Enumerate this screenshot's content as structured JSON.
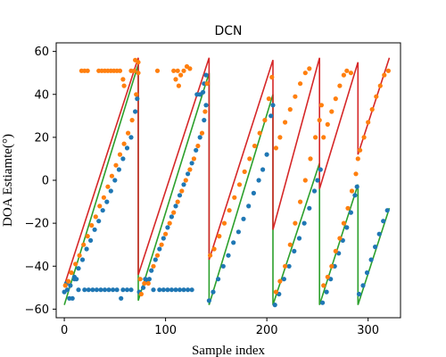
{
  "chart_data": {
    "type": "scatter",
    "title": "DCN",
    "xlabel": "Sample index",
    "ylabel": "DOA Estiamte(°)",
    "xlim": [
      -8,
      332
    ],
    "ylim": [
      -64,
      64
    ],
    "xticks": [
      0,
      100,
      200,
      300
    ],
    "yticks": [
      -60,
      -40,
      -20,
      0,
      20,
      40,
      60
    ],
    "grid": false,
    "colors": {
      "blue": "#1f77b4",
      "orange": "#ff7f0e",
      "green": "#2ca02c",
      "red": "#d62728"
    },
    "series": [
      {
        "color": "blue",
        "kind": "points",
        "points": [
          [
            0,
            -52
          ],
          [
            3,
            -51
          ],
          [
            6,
            -49
          ],
          [
            10,
            -45
          ],
          [
            14,
            -41
          ],
          [
            18,
            -37
          ],
          [
            22,
            -32
          ],
          [
            26,
            -28
          ],
          [
            30,
            -23
          ],
          [
            34,
            -19
          ],
          [
            38,
            -14
          ],
          [
            42,
            -10
          ],
          [
            46,
            -5
          ],
          [
            50,
            0
          ],
          [
            54,
            5
          ],
          [
            58,
            10
          ],
          [
            62,
            15
          ],
          [
            66,
            20
          ],
          [
            70,
            32
          ],
          [
            72,
            38
          ],
          [
            74,
            -52
          ],
          [
            78,
            -50
          ],
          [
            82,
            -47
          ],
          [
            86,
            -42
          ],
          [
            90,
            -37
          ],
          [
            94,
            -32
          ],
          [
            98,
            -27
          ],
          [
            102,
            -22
          ],
          [
            106,
            -17
          ],
          [
            110,
            -12
          ],
          [
            114,
            -7
          ],
          [
            118,
            -2
          ],
          [
            122,
            3
          ],
          [
            126,
            8
          ],
          [
            130,
            14
          ],
          [
            134,
            20
          ],
          [
            138,
            28
          ],
          [
            140,
            35
          ],
          [
            143,
            -56
          ],
          [
            147,
            -52
          ],
          [
            152,
            -46
          ],
          [
            157,
            -40
          ],
          [
            162,
            -35
          ],
          [
            167,
            -29
          ],
          [
            172,
            -24
          ],
          [
            177,
            -18
          ],
          [
            182,
            -12
          ],
          [
            187,
            -6
          ],
          [
            192,
            0
          ],
          [
            196,
            5
          ],
          [
            200,
            12
          ],
          [
            204,
            30
          ],
          [
            206,
            35
          ],
          [
            208,
            -58
          ],
          [
            212,
            -53
          ],
          [
            217,
            -46
          ],
          [
            222,
            -40
          ],
          [
            227,
            -33
          ],
          [
            232,
            -27
          ],
          [
            237,
            -20
          ],
          [
            242,
            -13
          ],
          [
            247,
            -5
          ],
          [
            250,
            0
          ],
          [
            253,
            5
          ],
          [
            255,
            -57
          ],
          [
            259,
            -52
          ],
          [
            263,
            -46
          ],
          [
            267,
            -40
          ],
          [
            271,
            -34
          ],
          [
            275,
            -28
          ],
          [
            279,
            -22
          ],
          [
            283,
            -15
          ],
          [
            287,
            -7
          ],
          [
            289,
            -3
          ],
          [
            291,
            -53
          ],
          [
            295,
            -49
          ],
          [
            299,
            -43
          ],
          [
            303,
            -37
          ],
          [
            307,
            -31
          ],
          [
            311,
            -25
          ],
          [
            315,
            -19
          ],
          [
            319,
            -14
          ],
          [
            2,
            -48
          ],
          [
            5,
            -55
          ],
          [
            8,
            -55
          ],
          [
            10,
            -46
          ],
          [
            12,
            -46
          ],
          [
            14,
            -51
          ],
          [
            20,
            -51
          ],
          [
            24,
            -51
          ],
          [
            28,
            -51
          ],
          [
            32,
            -51
          ],
          [
            36,
            -51
          ],
          [
            40,
            -51
          ],
          [
            44,
            -51
          ],
          [
            48,
            -51
          ],
          [
            52,
            -51
          ],
          [
            56,
            -55
          ],
          [
            58,
            -51
          ],
          [
            62,
            -51
          ],
          [
            66,
            -51
          ],
          [
            80,
            -46
          ],
          [
            84,
            -46
          ],
          [
            88,
            -51
          ],
          [
            94,
            -51
          ],
          [
            98,
            -51
          ],
          [
            102,
            -51
          ],
          [
            106,
            -51
          ],
          [
            110,
            -51
          ],
          [
            114,
            -51
          ],
          [
            118,
            -51
          ],
          [
            122,
            -51
          ],
          [
            126,
            -51
          ],
          [
            131,
            40
          ],
          [
            134,
            40
          ],
          [
            137,
            41
          ],
          [
            138,
            45
          ],
          [
            140,
            49
          ]
        ]
      },
      {
        "color": "orange",
        "kind": "points",
        "points": [
          [
            1,
            -49
          ],
          [
            4,
            -47
          ],
          [
            7,
            -43
          ],
          [
            11,
            -39
          ],
          [
            15,
            -35
          ],
          [
            19,
            -30
          ],
          [
            23,
            -26
          ],
          [
            27,
            -21
          ],
          [
            31,
            -17
          ],
          [
            35,
            -12
          ],
          [
            39,
            -8
          ],
          [
            43,
            -3
          ],
          [
            47,
            2
          ],
          [
            51,
            7
          ],
          [
            55,
            12
          ],
          [
            59,
            17
          ],
          [
            63,
            22
          ],
          [
            67,
            28
          ],
          [
            71,
            40
          ],
          [
            73,
            50
          ],
          [
            17,
            51
          ],
          [
            20,
            51
          ],
          [
            23,
            51
          ],
          [
            34,
            51
          ],
          [
            37,
            51
          ],
          [
            40,
            51
          ],
          [
            43,
            51
          ],
          [
            46,
            51
          ],
          [
            49,
            51
          ],
          [
            52,
            51
          ],
          [
            55,
            51
          ],
          [
            58,
            47
          ],
          [
            59,
            44
          ],
          [
            66,
            51
          ],
          [
            69,
            51
          ],
          [
            70,
            56
          ],
          [
            73,
            55
          ],
          [
            92,
            51
          ],
          [
            108,
            51
          ],
          [
            112,
            51
          ],
          [
            115,
            49
          ],
          [
            118,
            51
          ],
          [
            121,
            53
          ],
          [
            124,
            52
          ],
          [
            110,
            47
          ],
          [
            113,
            44
          ],
          [
            75,
            -46
          ],
          [
            79,
            -48
          ],
          [
            83,
            -48
          ],
          [
            76,
            -53
          ],
          [
            88,
            -40
          ],
          [
            92,
            -35
          ],
          [
            96,
            -30
          ],
          [
            100,
            -25
          ],
          [
            104,
            -20
          ],
          [
            108,
            -15
          ],
          [
            112,
            -10
          ],
          [
            116,
            -5
          ],
          [
            120,
            0
          ],
          [
            124,
            5
          ],
          [
            128,
            10
          ],
          [
            132,
            16
          ],
          [
            136,
            22
          ],
          [
            139,
            32
          ],
          [
            141,
            45
          ],
          [
            144,
            -35
          ],
          [
            148,
            -32
          ],
          [
            153,
            -26
          ],
          [
            158,
            -20
          ],
          [
            163,
            -14
          ],
          [
            168,
            -8
          ],
          [
            173,
            -2
          ],
          [
            178,
            4
          ],
          [
            183,
            10
          ],
          [
            188,
            16
          ],
          [
            193,
            22
          ],
          [
            198,
            28
          ],
          [
            202,
            38
          ],
          [
            205,
            48
          ],
          [
            209,
            -52
          ],
          [
            213,
            -47
          ],
          [
            218,
            -40
          ],
          [
            223,
            -30
          ],
          [
            228,
            -20
          ],
          [
            233,
            -10
          ],
          [
            238,
            0
          ],
          [
            243,
            10
          ],
          [
            248,
            20
          ],
          [
            252,
            28
          ],
          [
            254,
            35
          ],
          [
            256,
            -49
          ],
          [
            260,
            -45
          ],
          [
            264,
            -40
          ],
          [
            268,
            -33
          ],
          [
            272,
            -27
          ],
          [
            276,
            -20
          ],
          [
            280,
            -13
          ],
          [
            284,
            -5
          ],
          [
            288,
            3
          ],
          [
            290,
            10
          ],
          [
            292,
            14
          ],
          [
            296,
            20
          ],
          [
            300,
            27
          ],
          [
            304,
            33
          ],
          [
            308,
            39
          ],
          [
            312,
            44
          ],
          [
            316,
            49
          ],
          [
            320,
            51
          ],
          [
            209,
            15
          ],
          [
            213,
            20
          ],
          [
            218,
            27
          ],
          [
            223,
            33
          ],
          [
            228,
            39
          ],
          [
            233,
            45
          ],
          [
            238,
            50
          ],
          [
            242,
            52
          ],
          [
            256,
            20
          ],
          [
            260,
            26
          ],
          [
            264,
            32
          ],
          [
            268,
            38
          ],
          [
            272,
            44
          ],
          [
            276,
            49
          ],
          [
            279,
            51
          ],
          [
            283,
            50
          ]
        ]
      },
      {
        "color": "green",
        "kind": "line",
        "points": [
          [
            0,
            -58
          ],
          [
            73,
            54
          ],
          [
            73,
            -56
          ],
          [
            143,
            50
          ],
          [
            143,
            -58
          ],
          [
            206,
            40
          ],
          [
            206,
            -58
          ],
          [
            252,
            8
          ],
          [
            252,
            -58
          ],
          [
            290,
            -2
          ],
          [
            290,
            -58
          ],
          [
            321,
            -13
          ]
        ]
      },
      {
        "color": "red",
        "kind": "line",
        "points": [
          [
            0,
            -49
          ],
          [
            73,
            57
          ],
          [
            73,
            -44
          ],
          [
            143,
            57
          ],
          [
            143,
            -37
          ],
          [
            206,
            56
          ],
          [
            206,
            -23
          ],
          [
            252,
            57
          ],
          [
            252,
            -4
          ],
          [
            290,
            55
          ],
          [
            290,
            12
          ],
          [
            321,
            57
          ]
        ]
      }
    ]
  }
}
